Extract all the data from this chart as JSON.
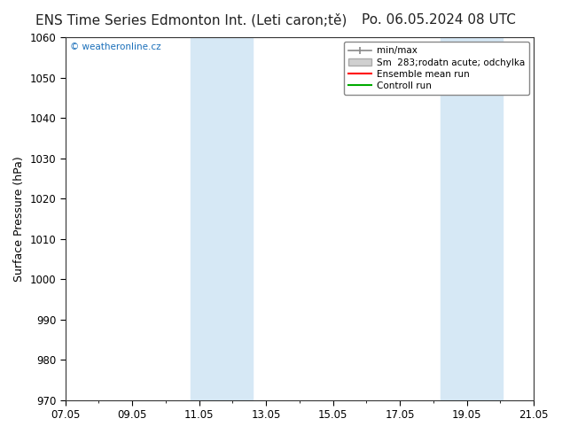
{
  "title": "ENS Time Series Edmonton Int. (Leti caron;tě)",
  "date_label": "Po. 06.05.2024 08 UTC",
  "ylabel": "Surface Pressure (hPa)",
  "ylim": [
    970,
    1060
  ],
  "yticks": [
    970,
    980,
    990,
    1000,
    1010,
    1020,
    1030,
    1040,
    1050,
    1060
  ],
  "xtick_labels": [
    "07.05",
    "09.05",
    "11.05",
    "13.05",
    "15.05",
    "17.05",
    "19.05",
    "21.05"
  ],
  "shaded_regions": [
    {
      "start": 4,
      "end": 6
    },
    {
      "start": 12,
      "end": 14
    }
  ],
  "shade_color": "#d6e8f5",
  "watermark": "© weatheronline.cz",
  "legend_labels": [
    "min/max",
    "Sm  283;rodatn acute; odchylka",
    "Ensemble mean run",
    "Controll run"
  ],
  "background_color": "#ffffff",
  "title_fontsize": 11,
  "axis_fontsize": 9,
  "tick_fontsize": 8.5,
  "total_days": 15
}
